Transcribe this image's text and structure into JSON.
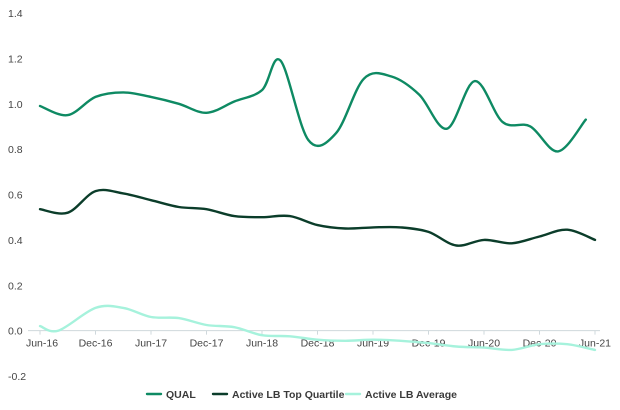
{
  "chart_data": {
    "type": "line",
    "title": "",
    "xlabel": "",
    "ylabel": "",
    "ylim": [
      -0.2,
      1.4
    ],
    "y_ticks": [
      "-0.2",
      "0.0",
      "0.2",
      "0.4",
      "0.6",
      "0.8",
      "1.0",
      "1.2",
      "1.4"
    ],
    "y_tick_values": [
      -0.2,
      0.0,
      0.2,
      0.4,
      0.6,
      0.8,
      1.0,
      1.2,
      1.4
    ],
    "x_ticks": [
      "Jun-16",
      "Dec-16",
      "Jun-17",
      "Dec-17",
      "Jun-18",
      "Dec-18",
      "Jun-19",
      "Dec-19",
      "Jun-20",
      "Dec-20",
      "Jun-21"
    ],
    "x_tick_positions": [
      0,
      6,
      12,
      18,
      24,
      30,
      36,
      42,
      48,
      54,
      60
    ],
    "grid": false,
    "legend_position": "bottom",
    "series": [
      {
        "name": "QUAL",
        "color": "#0e8a63",
        "points": [
          [
            0,
            0.99
          ],
          [
            3,
            0.95
          ],
          [
            6,
            1.03
          ],
          [
            9,
            1.05
          ],
          [
            12,
            1.03
          ],
          [
            15,
            1.0
          ],
          [
            18,
            0.96
          ],
          [
            21,
            1.01
          ],
          [
            24,
            1.06
          ],
          [
            26,
            1.19
          ],
          [
            29,
            0.84
          ],
          [
            32,
            0.87
          ],
          [
            35,
            1.11
          ],
          [
            38,
            1.12
          ],
          [
            41,
            1.04
          ],
          [
            44,
            0.89
          ],
          [
            47,
            1.1
          ],
          [
            50,
            0.92
          ],
          [
            53,
            0.9
          ],
          [
            56,
            0.79
          ],
          [
            59,
            0.93
          ]
        ]
      },
      {
        "name": "Active LB Top Quartile",
        "color": "#0b3d2a",
        "points": [
          [
            0,
            0.535
          ],
          [
            3,
            0.52
          ],
          [
            6,
            0.615
          ],
          [
            9,
            0.605
          ],
          [
            12,
            0.575
          ],
          [
            15,
            0.545
          ],
          [
            18,
            0.535
          ],
          [
            21,
            0.505
          ],
          [
            24,
            0.5
          ],
          [
            27,
            0.505
          ],
          [
            30,
            0.465
          ],
          [
            33,
            0.45
          ],
          [
            36,
            0.455
          ],
          [
            39,
            0.455
          ],
          [
            42,
            0.435
          ],
          [
            45,
            0.375
          ],
          [
            48,
            0.4
          ],
          [
            51,
            0.385
          ],
          [
            54,
            0.415
          ],
          [
            57,
            0.445
          ],
          [
            60,
            0.4
          ]
        ]
      },
      {
        "name": "Active LB Average",
        "color": "#a6f2dc",
        "points": [
          [
            0,
            0.02
          ],
          [
            2,
            0.0
          ],
          [
            6,
            0.1
          ],
          [
            9,
            0.1
          ],
          [
            12,
            0.06
          ],
          [
            15,
            0.055
          ],
          [
            18,
            0.025
          ],
          [
            21,
            0.015
          ],
          [
            24,
            -0.02
          ],
          [
            27,
            -0.025
          ],
          [
            30,
            -0.04
          ],
          [
            33,
            -0.045
          ],
          [
            36,
            -0.04
          ],
          [
            39,
            -0.045
          ],
          [
            42,
            -0.055
          ],
          [
            45,
            -0.07
          ],
          [
            48,
            -0.075
          ],
          [
            51,
            -0.085
          ],
          [
            54,
            -0.06
          ],
          [
            57,
            -0.06
          ],
          [
            60,
            -0.085
          ]
        ]
      }
    ]
  }
}
